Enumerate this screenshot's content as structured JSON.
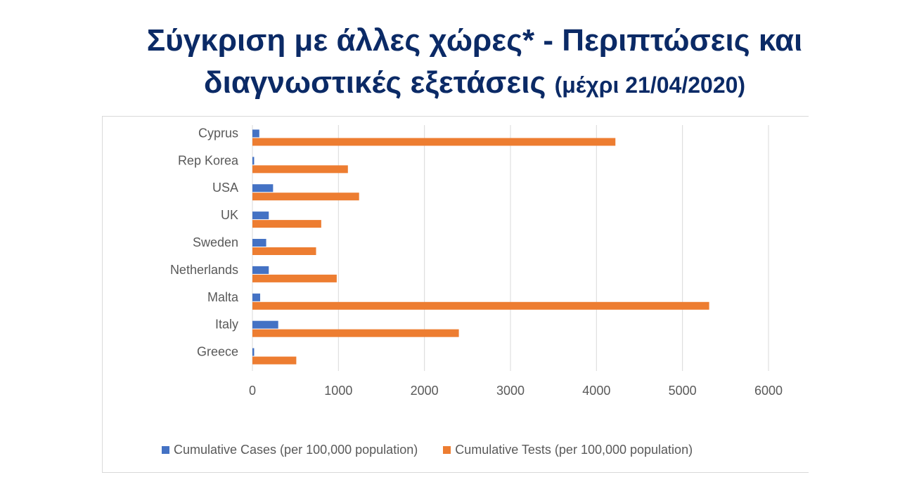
{
  "slide": {
    "title_main": "Σύγκριση με άλλες χώρες* - Περιπτώσεις και διαγνωστικές εξετάσεις",
    "title_sub": "(μέχρι 21/04/2020)"
  },
  "colors": {
    "cases": "#4472c4",
    "tests": "#ed7d31",
    "grid": "#d9d9d9",
    "title": "#0b2a66"
  },
  "chart_data": {
    "type": "bar",
    "orientation": "horizontal",
    "title": "",
    "xlabel": "",
    "ylabel": "",
    "categories": [
      "Cyprus",
      "Rep Korea",
      "USA",
      "UK",
      "Sweden",
      "Netherlands",
      "Malta",
      "Italy",
      "Greece"
    ],
    "series": [
      {
        "name": "Cumulative Cases (per 100,000 population)",
        "color": "#4472c4",
        "values": [
          80,
          20,
          240,
          190,
          160,
          190,
          90,
          300,
          20
        ]
      },
      {
        "name": "Cumulative Tests (per 100,000 population)",
        "color": "#ed7d31",
        "values": [
          4220,
          1110,
          1240,
          800,
          740,
          980,
          5310,
          2400,
          510
        ]
      }
    ],
    "xlim": [
      0,
      6000
    ],
    "xticks": [
      0,
      1000,
      2000,
      3000,
      4000,
      5000,
      6000
    ],
    "grid": true,
    "legend_position": "bottom"
  }
}
